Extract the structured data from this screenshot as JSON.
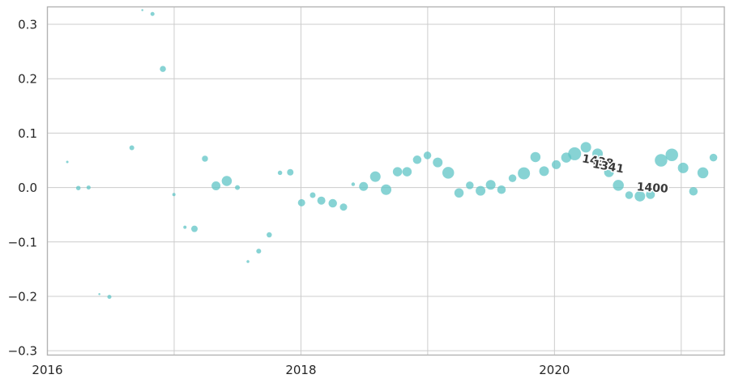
{
  "figure": {
    "background": "#ffffff",
    "marker_color": "#5fc4c6",
    "marker_opacity": 0.75,
    "grid_color": "#cccccc",
    "spine_color": "#b3b3b3",
    "tick_label_color": "#262626",
    "annotation_color": "#3a3a3a",
    "annotation_outline": "#ffffff"
  },
  "chart_data": {
    "type": "scatter",
    "subtype": "bubble",
    "title": "",
    "xlabel": "",
    "ylabel": "",
    "grid": true,
    "legend": false,
    "xlim": [
      2016.0,
      2021.34
    ],
    "ylim": [
      -0.308,
      0.332
    ],
    "x_gridlines": [
      2016,
      2017,
      2018,
      2019,
      2020,
      2021
    ],
    "x_tick_labels": [
      {
        "value": 2016,
        "label": "2016"
      },
      {
        "value": 2018,
        "label": "2018"
      },
      {
        "value": 2020,
        "label": "2020"
      }
    ],
    "y_ticks": [
      {
        "value": 0.3,
        "label": "0.3"
      },
      {
        "value": 0.2,
        "label": "0.2"
      },
      {
        "value": 0.1,
        "label": "0.1"
      },
      {
        "value": 0.0,
        "label": "0.0"
      },
      {
        "value": -0.1,
        "label": "−0.1"
      },
      {
        "value": -0.2,
        "label": "−0.2"
      },
      {
        "value": -0.3,
        "label": "−0.3"
      }
    ],
    "marker_size_unit": "px_diameter",
    "points": [
      {
        "x": 2016.157,
        "y": 0.047,
        "s": 3
      },
      {
        "x": 2016.244,
        "y": -0.001,
        "s": 5.5
      },
      {
        "x": 2016.325,
        "y": 0.0,
        "s": 5
      },
      {
        "x": 2016.41,
        "y": -0.196,
        "s": 2.5
      },
      {
        "x": 2016.489,
        "y": -0.201,
        "s": 5
      },
      {
        "x": 2016.666,
        "y": 0.073,
        "s": 6
      },
      {
        "x": 2016.749,
        "y": 0.326,
        "s": 2.5
      },
      {
        "x": 2016.829,
        "y": 0.319,
        "s": 5
      },
      {
        "x": 2016.911,
        "y": 0.218,
        "s": 7.5
      },
      {
        "x": 2016.998,
        "y": -0.013,
        "s": 4
      },
      {
        "x": 2017.085,
        "y": -0.073,
        "s": 4
      },
      {
        "x": 2017.16,
        "y": -0.076,
        "s": 8
      },
      {
        "x": 2017.243,
        "y": 0.053,
        "s": 7.5
      },
      {
        "x": 2017.33,
        "y": 0.003,
        "s": 11
      },
      {
        "x": 2017.415,
        "y": 0.012,
        "s": 12.5
      },
      {
        "x": 2017.499,
        "y": 0.0,
        "s": 6
      },
      {
        "x": 2017.582,
        "y": -0.136,
        "s": 3.5
      },
      {
        "x": 2017.667,
        "y": -0.117,
        "s": 6
      },
      {
        "x": 2017.75,
        "y": -0.087,
        "s": 6.5
      },
      {
        "x": 2017.835,
        "y": 0.027,
        "s": 5.5
      },
      {
        "x": 2017.916,
        "y": 0.028,
        "s": 8
      },
      {
        "x": 2018.005,
        "y": -0.028,
        "s": 9
      },
      {
        "x": 2018.093,
        "y": -0.014,
        "s": 7
      },
      {
        "x": 2018.161,
        "y": -0.024,
        "s": 10
      },
      {
        "x": 2018.251,
        "y": -0.029,
        "s": 10.5
      },
      {
        "x": 2018.336,
        "y": -0.036,
        "s": 9
      },
      {
        "x": 2018.412,
        "y": 0.006,
        "s": 4.5
      },
      {
        "x": 2018.494,
        "y": 0.002,
        "s": 11
      },
      {
        "x": 2018.587,
        "y": 0.02,
        "s": 13
      },
      {
        "x": 2018.672,
        "y": -0.004,
        "s": 13
      },
      {
        "x": 2018.762,
        "y": 0.029,
        "s": 11.5
      },
      {
        "x": 2018.837,
        "y": 0.029,
        "s": 11.5
      },
      {
        "x": 2018.917,
        "y": 0.051,
        "s": 10.5
      },
      {
        "x": 2018.998,
        "y": 0.059,
        "s": 9.5
      },
      {
        "x": 2019.079,
        "y": 0.046,
        "s": 12
      },
      {
        "x": 2019.162,
        "y": 0.027,
        "s": 14.5
      },
      {
        "x": 2019.247,
        "y": -0.01,
        "s": 11.5
      },
      {
        "x": 2019.332,
        "y": 0.004,
        "s": 9.5
      },
      {
        "x": 2019.417,
        "y": -0.006,
        "s": 12
      },
      {
        "x": 2019.497,
        "y": 0.005,
        "s": 12
      },
      {
        "x": 2019.582,
        "y": -0.004,
        "s": 10.5
      },
      {
        "x": 2019.669,
        "y": 0.017,
        "s": 9.5
      },
      {
        "x": 2019.759,
        "y": 0.026,
        "s": 15
      },
      {
        "x": 2019.85,
        "y": 0.056,
        "s": 12.5
      },
      {
        "x": 2019.918,
        "y": 0.03,
        "s": 12
      },
      {
        "x": 2020.014,
        "y": 0.042,
        "s": 11
      },
      {
        "x": 2020.093,
        "y": 0.055,
        "s": 12.5
      },
      {
        "x": 2020.159,
        "y": 0.062,
        "s": 16
      },
      {
        "x": 2020.248,
        "y": 0.074,
        "s": 13
      },
      {
        "x": 2020.34,
        "y": 0.062,
        "s": 13
      },
      {
        "x": 2020.43,
        "y": 0.028,
        "s": 12
      },
      {
        "x": 2020.504,
        "y": 0.004,
        "s": 13.5
      },
      {
        "x": 2020.589,
        "y": -0.014,
        "s": 9.5
      },
      {
        "x": 2020.674,
        "y": -0.016,
        "s": 13
      },
      {
        "x": 2020.757,
        "y": -0.013,
        "s": 11
      },
      {
        "x": 2020.841,
        "y": 0.05,
        "s": 15.5
      },
      {
        "x": 2020.926,
        "y": 0.06,
        "s": 15.5
      },
      {
        "x": 2021.015,
        "y": 0.036,
        "s": 13
      },
      {
        "x": 2021.096,
        "y": -0.007,
        "s": 10.5
      },
      {
        "x": 2021.171,
        "y": 0.027,
        "s": 13.5
      },
      {
        "x": 2021.254,
        "y": 0.055,
        "s": 9.5
      }
    ],
    "annotations": [
      {
        "text": "1438",
        "x": 2020.342,
        "y": 0.049,
        "rotation_deg": 10
      },
      {
        "text": "1341",
        "x": 2020.425,
        "y": 0.039,
        "rotation_deg": 10
      },
      {
        "text": "1400",
        "x": 2020.773,
        "y": 0.0,
        "rotation_deg": 4
      }
    ]
  }
}
